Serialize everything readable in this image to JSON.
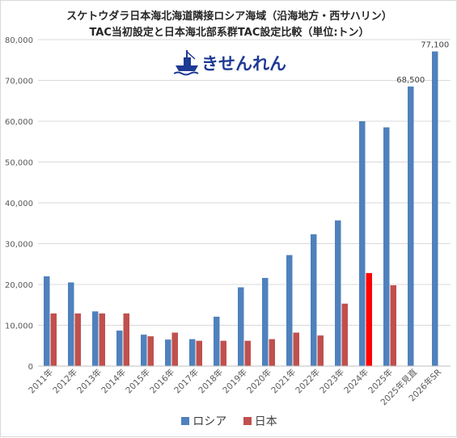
{
  "title_line1": "スケトウダラ日本海北海道隣接ロシア海域（沿海地方・西サハリン）",
  "title_line2": "TAC当初設定と日本海北部系群TAC設定比較（単位:トン）",
  "logo_text": "きせんれん",
  "colors": {
    "russia": "#4f81bd",
    "japan": "#c0504d",
    "japan_highlight": "#ff0000",
    "grid": "#d9d9d9",
    "axis_text": "#595959"
  },
  "chart_data": {
    "type": "bar",
    "categories": [
      "2011年",
      "2012年",
      "2013年",
      "2014年",
      "2015年",
      "2016年",
      "2017年",
      "2018年",
      "2019年",
      "2020年",
      "2021年",
      "2022年",
      "2023年",
      "2024年",
      "2025年",
      "2025年見直",
      "2026年SR"
    ],
    "series": [
      {
        "name": "ロシア",
        "values": [
          22000,
          20500,
          13400,
          8700,
          7700,
          6500,
          6600,
          12100,
          19300,
          21600,
          27200,
          32300,
          35700,
          60000,
          58500,
          68500,
          77100
        ]
      },
      {
        "name": "日本",
        "values": [
          12900,
          12900,
          12900,
          12900,
          7300,
          8200,
          6200,
          6200,
          6200,
          6600,
          8200,
          7500,
          15300,
          22800,
          19800,
          null,
          null
        ]
      }
    ],
    "highlight": {
      "series": "日本",
      "category": "2024年"
    },
    "data_labels": [
      {
        "category": "2025年見直",
        "text": "68,500"
      },
      {
        "category": "2026年SR",
        "text": "77,100"
      }
    ],
    "y_ticks": [
      "0",
      "10,000",
      "20,000",
      "30,000",
      "40,000",
      "50,000",
      "60,000",
      "70,000",
      "80,000"
    ],
    "ylim": [
      0,
      80000
    ],
    "grid": true,
    "legend_position": "bottom"
  }
}
